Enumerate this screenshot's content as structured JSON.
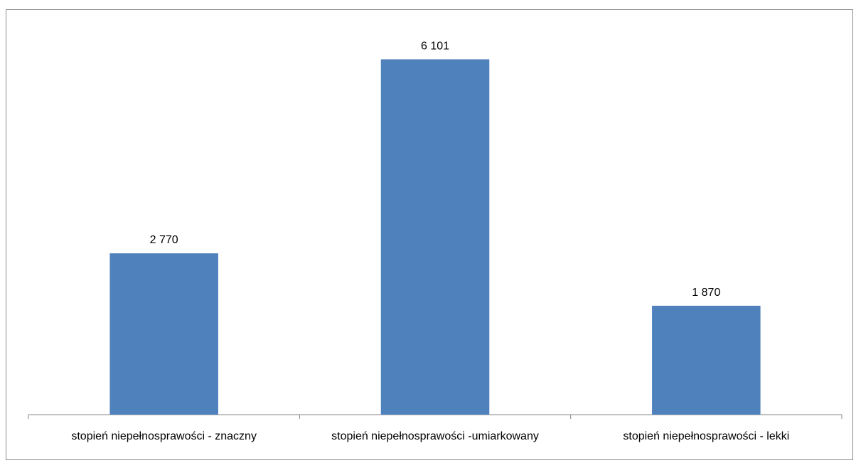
{
  "chart_data": {
    "type": "bar",
    "categories": [
      "stopień niepełnosprawości - znaczny",
      "stopień niepełnosprawości -umiarkowany",
      "stopień niepełnosprawości - lekki"
    ],
    "values": [
      2770,
      6101,
      1870
    ],
    "value_labels": [
      "2 770",
      "6 101",
      "1 870"
    ],
    "title": "",
    "xlabel": "",
    "ylabel": "",
    "ylim": [
      0,
      6900
    ],
    "grid": false,
    "legend": "none",
    "bar_color": "#4f81bd",
    "axis_color": "#868686"
  }
}
